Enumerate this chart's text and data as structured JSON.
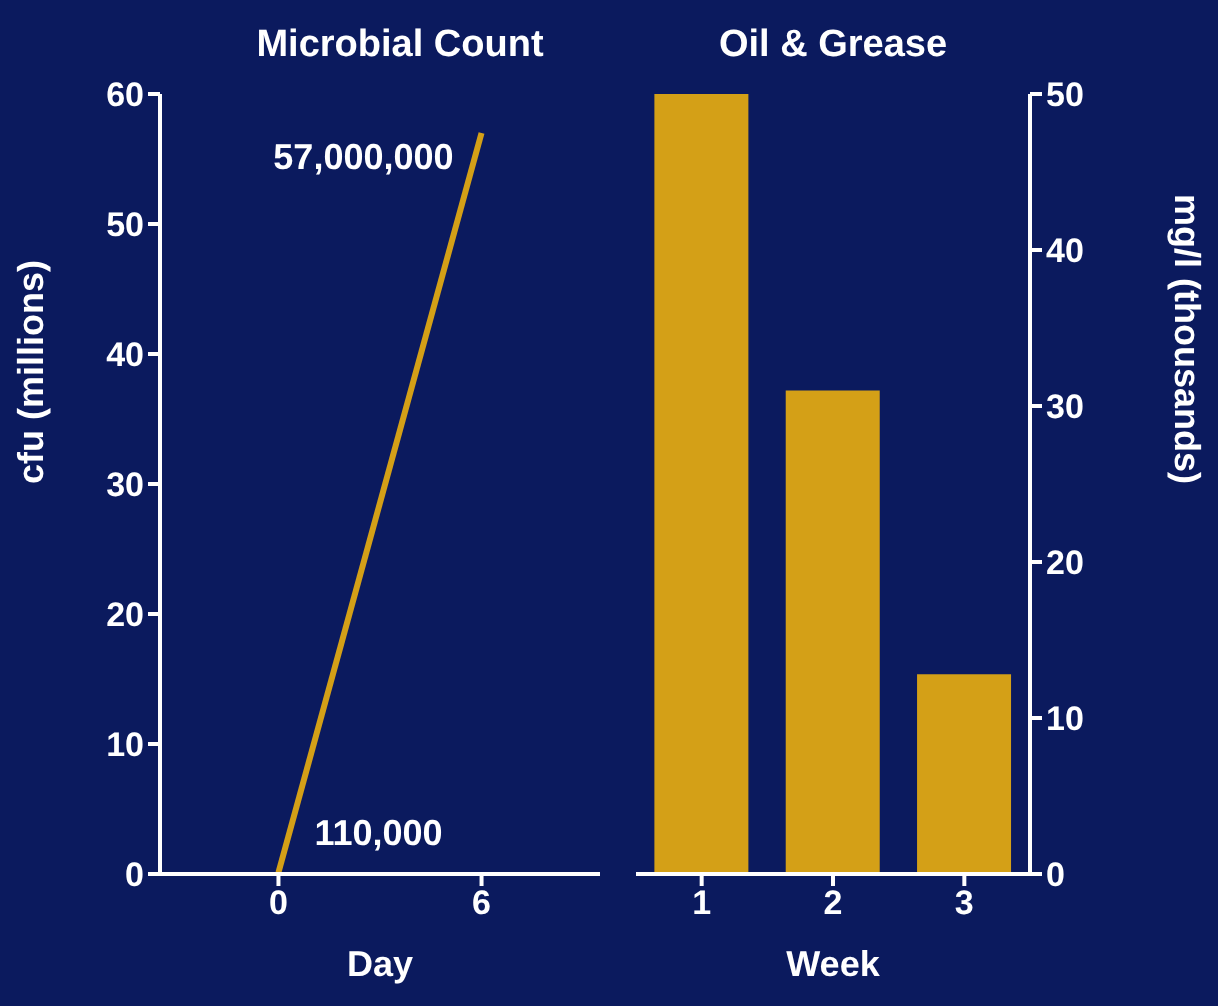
{
  "chart_data": [
    {
      "type": "line",
      "title": "Microbial Count",
      "xlabel": "Day",
      "ylabel": "cfu (millions)",
      "x": [
        0,
        6
      ],
      "series": [
        {
          "color": "#d4a017",
          "values": [
            0.11,
            57
          ]
        }
      ],
      "xlim": [
        -3.5,
        9.5
      ],
      "xticks": [
        0,
        6
      ],
      "ylim": [
        0,
        60
      ],
      "yticks": [
        0,
        10,
        20,
        30,
        40,
        50,
        60
      ],
      "marker": "none",
      "line_style": "solid",
      "annotations": [
        {
          "text": "57,000,000",
          "x": 6,
          "y": 57
        },
        {
          "text": "110,000",
          "x": 0,
          "y": 0.11
        }
      ]
    },
    {
      "type": "bar",
      "title": "Oil & Grease",
      "xlabel": "Week",
      "y2label": "mg/l (thousands)",
      "categories": [
        "1",
        "2",
        "3"
      ],
      "series": [
        {
          "color": "#d4a017",
          "values": [
            50,
            31,
            12.8
          ],
          "axis": "y2"
        }
      ],
      "y2lim": [
        0,
        50
      ],
      "y2ticks": [
        0,
        10,
        20,
        30,
        40,
        50
      ]
    }
  ]
}
